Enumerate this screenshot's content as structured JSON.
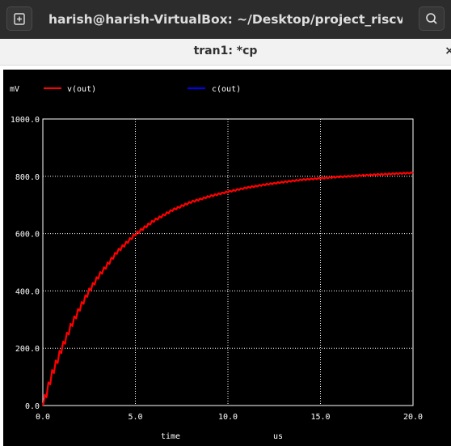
{
  "window": {
    "title": "harish@harish-VirtualBox: ~/Desktop/project_riscv",
    "new_tab_icon": "new-tab-icon",
    "search_icon": "search-icon"
  },
  "tab": {
    "title": "tran1: *cp",
    "close": "×"
  },
  "colors": {
    "background": "#000000",
    "grid": "#ffffff",
    "vout": "#ff0000",
    "cout": "#0000ff"
  },
  "chart_data": {
    "type": "line",
    "ylabel": "mV",
    "xlabel": "time",
    "xunit": "us",
    "xlim": [
      0,
      20
    ],
    "ylim": [
      0,
      1000
    ],
    "x_ticks": [
      "0.0",
      "5.0",
      "10.0",
      "15.0",
      "20.0"
    ],
    "y_ticks": [
      "0.0",
      "200.0",
      "400.0",
      "600.0",
      "800.0",
      "1000.0"
    ],
    "grid": true,
    "legend_position": "top",
    "series": [
      {
        "name": "v(out)",
        "color": "#ff0000",
        "x": [
          0,
          0.5,
          1,
          1.5,
          2,
          2.5,
          3,
          4,
          5,
          6,
          7,
          8,
          9,
          10,
          11,
          12,
          13,
          14,
          15,
          16,
          17,
          18,
          19,
          20
        ],
        "y": [
          0,
          110,
          195,
          275,
          340,
          400,
          450,
          535,
          598,
          645,
          682,
          710,
          730,
          746,
          760,
          771,
          780,
          788,
          793,
          798,
          802,
          806,
          809,
          812
        ]
      },
      {
        "name": "c(out)",
        "color": "#0000ff",
        "x": [],
        "y": []
      }
    ]
  }
}
